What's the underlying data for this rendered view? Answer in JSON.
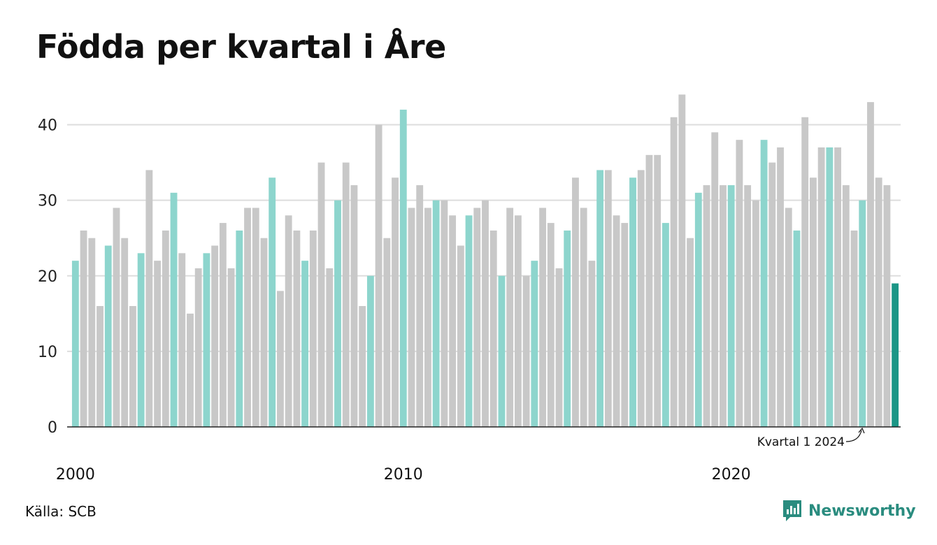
{
  "chart_data": {
    "type": "bar",
    "title": "Födda per kvartal i Åre",
    "x_start": "2000 Q1",
    "x_tick_labels": [
      "2000",
      "2010",
      "2020"
    ],
    "y_tick_labels": [
      "0",
      "10",
      "20",
      "30",
      "40"
    ],
    "ylim": [
      0,
      45
    ],
    "grid": true,
    "values": [
      22,
      26,
      25,
      16,
      24,
      29,
      25,
      16,
      23,
      34,
      22,
      26,
      31,
      23,
      15,
      21,
      23,
      24,
      27,
      21,
      26,
      29,
      29,
      25,
      33,
      18,
      28,
      26,
      22,
      26,
      35,
      21,
      30,
      35,
      32,
      16,
      20,
      40,
      25,
      33,
      42,
      29,
      32,
      29,
      30,
      30,
      28,
      24,
      28,
      29,
      30,
      26,
      20,
      29,
      28,
      20,
      22,
      29,
      27,
      21,
      26,
      33,
      29,
      22,
      34,
      34,
      28,
      27,
      33,
      34,
      36,
      36,
      27,
      41,
      44,
      25,
      31,
      32,
      39,
      32,
      32,
      38,
      32,
      30,
      38,
      35,
      37,
      29,
      26,
      41,
      33,
      37,
      37,
      37,
      32,
      26,
      30,
      43,
      33,
      32,
      19
    ],
    "annotation": "Kvartal 1 2024",
    "colors": {
      "q1": "#8dd5cd",
      "other": "#c8c8c8",
      "latest": "#1b9686",
      "grid": "#dddddd",
      "axis": "#222222"
    }
  },
  "footer": {
    "source": "Källa: SCB",
    "brand": "Newsworthy"
  }
}
